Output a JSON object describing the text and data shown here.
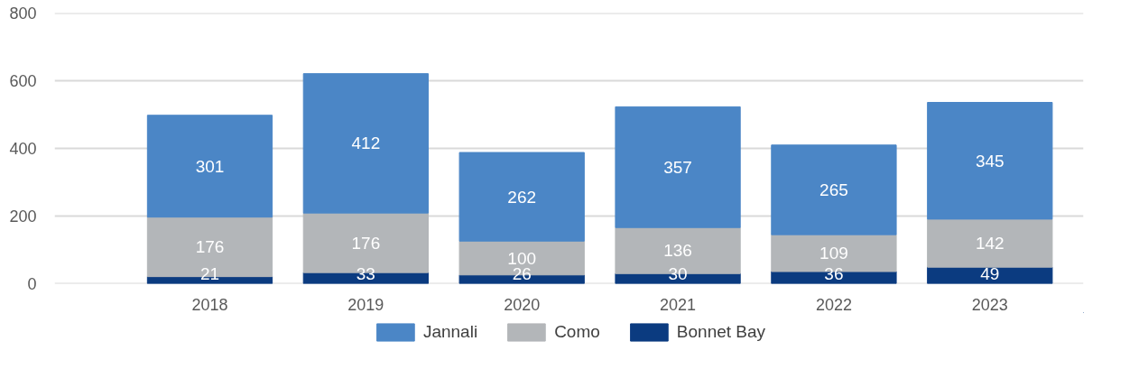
{
  "chart_data": {
    "type": "bar",
    "stacked": true,
    "categories": [
      "2018",
      "2019",
      "2020",
      "2021",
      "2022",
      "2023"
    ],
    "series": [
      {
        "name": "Bonnet Bay",
        "color": "#0b3b80",
        "values": [
          21,
          33,
          26,
          30,
          36,
          49
        ]
      },
      {
        "name": "Como",
        "color": "#b3b6b9",
        "values": [
          176,
          176,
          100,
          136,
          109,
          142
        ]
      },
      {
        "name": "Jannali",
        "color": "#4b86c6",
        "values": [
          301,
          412,
          262,
          357,
          265,
          345
        ]
      }
    ],
    "ylim": [
      0,
      800
    ],
    "yticks": [
      0,
      200,
      400,
      600,
      800
    ],
    "grid": "y",
    "legend": "bottom",
    "data_labels": true
  }
}
